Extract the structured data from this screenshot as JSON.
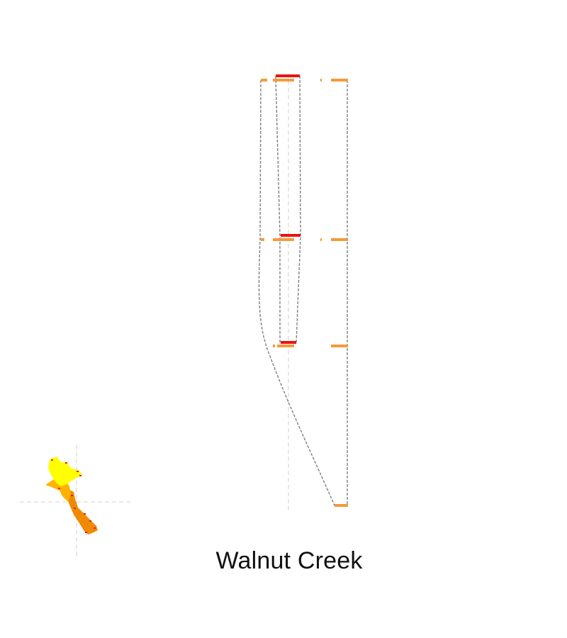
{
  "diagram": {
    "title": "Walnut Creek",
    "colors": {
      "background": "#ffffff",
      "outline": "#808080",
      "centerline": "#d0d0d0",
      "segment": "#f49a3a",
      "highlight": "#ee1111",
      "inset_bright": "#ffff00",
      "inset_mid": "#ffb300",
      "inset_dark": "#f08a00",
      "inset_marks": "#e02020"
    },
    "elements": [
      "centerline",
      "outer-outline",
      "inner-outline",
      "right-outline",
      "segment-bars",
      "highlight-bars",
      "inset-map"
    ]
  }
}
